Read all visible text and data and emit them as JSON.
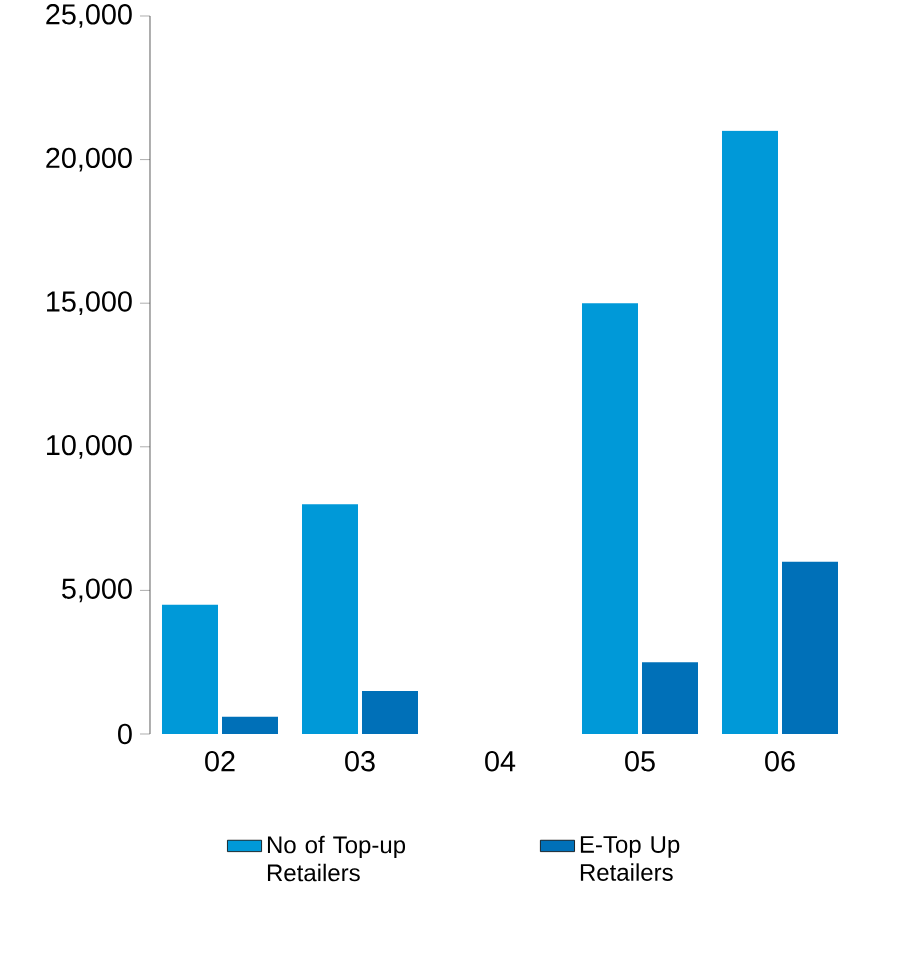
{
  "chart_data": {
    "type": "bar",
    "categories": [
      "02",
      "03",
      "04",
      "05",
      "06"
    ],
    "series": [
      {
        "name": "No of Top-up Retailers",
        "color": "#0099d8",
        "values": [
          4500,
          8000,
          null,
          15000,
          21000
        ]
      },
      {
        "name": "E-Top Up Retailers",
        "color": "#0070b8",
        "values": [
          600,
          1500,
          null,
          2500,
          6000
        ]
      }
    ],
    "ylim": [
      0,
      25000
    ],
    "yticks": [
      {
        "value": 0,
        "label": "0"
      },
      {
        "value": 5000,
        "label": "5,000"
      },
      {
        "value": 10000,
        "label": "10,000"
      },
      {
        "value": 15000,
        "label": "15,000"
      },
      {
        "value": 20000,
        "label": "20,000"
      },
      {
        "value": 25000,
        "label": "25,000"
      }
    ],
    "grid": false,
    "legend": "bottom"
  }
}
